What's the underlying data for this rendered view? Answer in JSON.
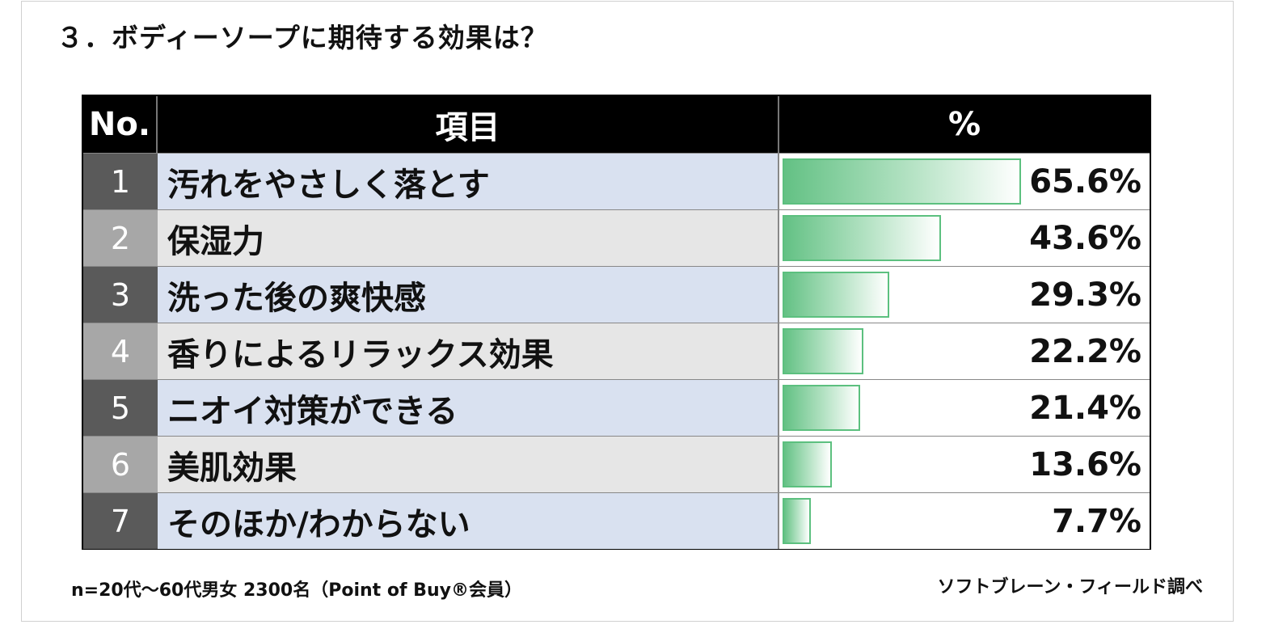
{
  "title": "３．ボディーソープに期待する効果は？",
  "headers": {
    "no": "No.",
    "item": "項目",
    "pct": "%"
  },
  "colors": {
    "bar_border": "#5cc07f",
    "bar_fill": "#63c184",
    "header_bg": "#000000"
  },
  "chart_data": {
    "type": "bar",
    "title": "３．ボディーソープに期待する効果は？",
    "orientation": "horizontal",
    "categories": [
      "汚れをやさしく落とす",
      "保湿力",
      "洗った後の爽快感",
      "香りによるリラックス効果",
      "ニオイ対策ができる",
      "美肌効果",
      "そのほか/わからない"
    ],
    "ranks": [
      "1",
      "2",
      "3",
      "4",
      "5",
      "6",
      "7"
    ],
    "values": [
      65.6,
      43.6,
      29.3,
      22.2,
      21.4,
      13.6,
      7.7
    ],
    "labels": [
      "65.6%",
      "43.6%",
      "29.3%",
      "22.2%",
      "21.4%",
      "13.6%",
      "7.7%"
    ],
    "unit": "%"
  },
  "note": "n=20代～60代男女 2300名（Point of Buy®会員）",
  "source": "ソフトブレーン・フィールド調べ"
}
